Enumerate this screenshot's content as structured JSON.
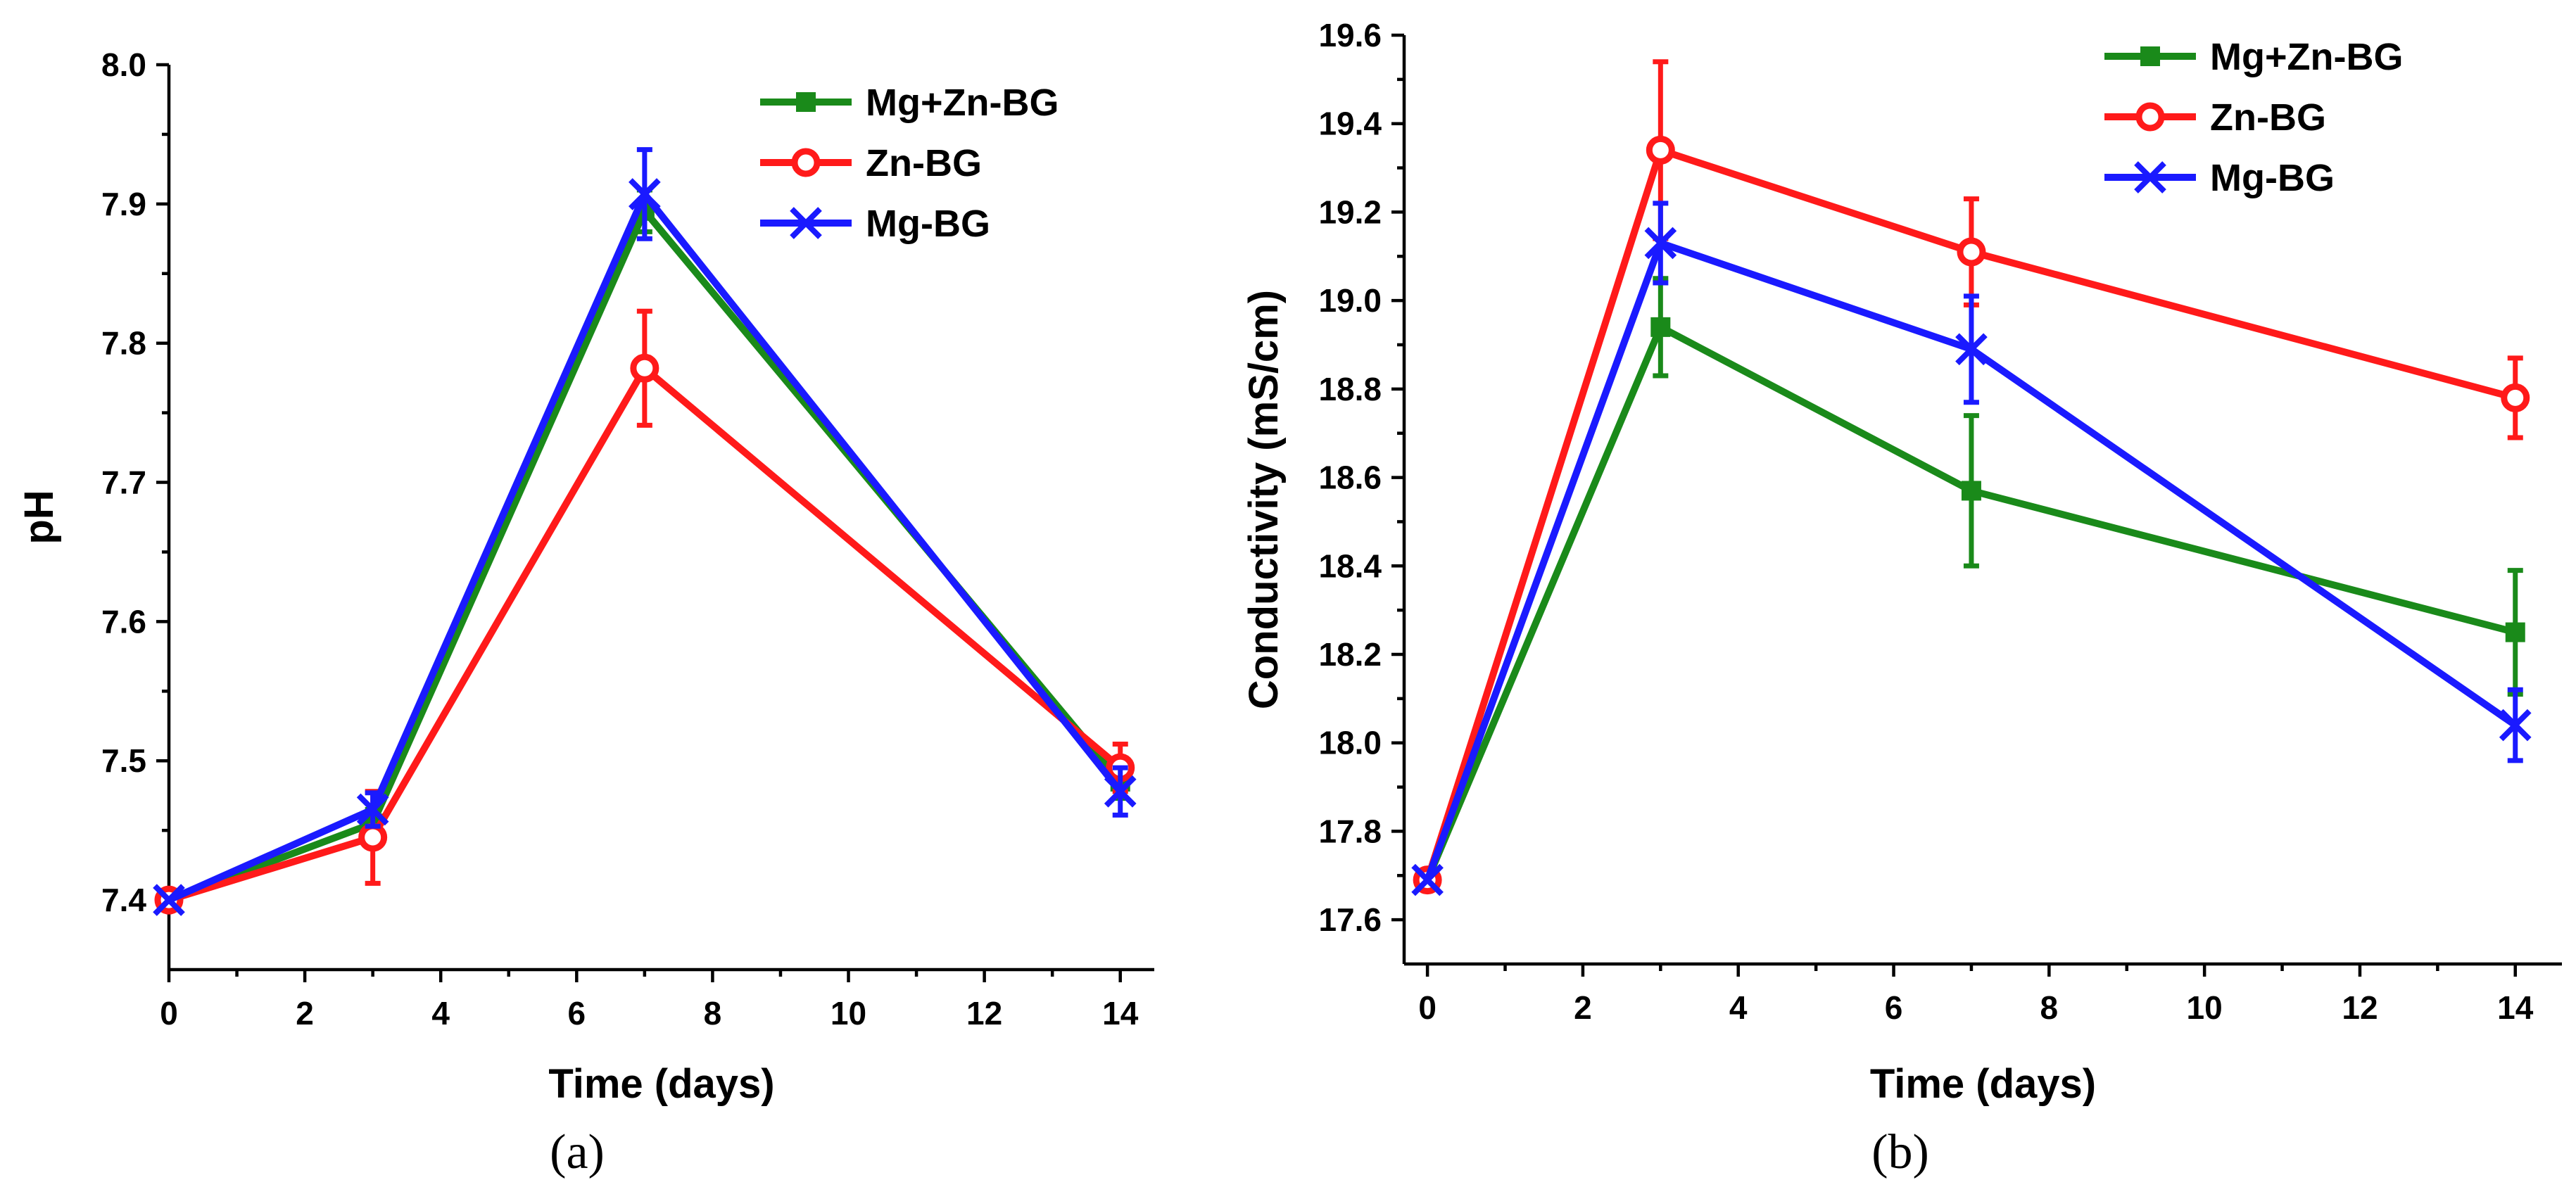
{
  "chart_data": [
    {
      "type": "line",
      "caption": "(a)",
      "xlabel": "Time (days)",
      "ylabel": "pH",
      "xlim": [
        0,
        14.5
      ],
      "ylim": [
        7.35,
        8.0
      ],
      "xticks": [
        0,
        2,
        4,
        6,
        8,
        10,
        12,
        14
      ],
      "yticks": [
        7.4,
        7.5,
        7.6,
        7.7,
        7.8,
        7.9,
        8.0
      ],
      "ytick_labels": [
        "7.4",
        "7.5",
        "7.6",
        "7.7",
        "7.8",
        "7.9",
        "8.0"
      ],
      "legend_position": "top-right",
      "series": [
        {
          "name": "Mg+Zn-BG",
          "color": "#1a8a1a",
          "marker": "square",
          "x": [
            0,
            3,
            7,
            14
          ],
          "y": [
            7.4,
            7.455,
            7.895,
            7.485
          ],
          "err": [
            0,
            0.01,
            0.015,
            0.012
          ]
        },
        {
          "name": "Zn-BG",
          "color": "#ff1a1a",
          "marker": "circle",
          "x": [
            0,
            3,
            7,
            14
          ],
          "y": [
            7.4,
            7.445,
            7.782,
            7.495
          ],
          "err": [
            0,
            0.033,
            0.041,
            0.017
          ]
        },
        {
          "name": "Mg-BG",
          "color": "#1a1aff",
          "marker": "cross",
          "x": [
            0,
            3,
            7,
            14
          ],
          "y": [
            7.4,
            7.465,
            7.907,
            7.478
          ],
          "err": [
            0,
            0.012,
            0.032,
            0.017
          ]
        }
      ]
    },
    {
      "type": "line",
      "caption": "(b)",
      "xlabel": "Time (days)",
      "ylabel": "Conductivity (mS/cm)",
      "xlim": [
        -0.3,
        14.6
      ],
      "ylim": [
        17.5,
        19.6
      ],
      "xticks": [
        0,
        2,
        4,
        6,
        8,
        10,
        12,
        14
      ],
      "yticks": [
        17.6,
        17.8,
        18.0,
        18.2,
        18.4,
        18.6,
        18.8,
        19.0,
        19.2,
        19.4,
        19.6
      ],
      "ytick_labels": [
        "17.6",
        "17.8",
        "18.0",
        "18.2",
        "18.4",
        "18.6",
        "18.8",
        "19.0",
        "19.2",
        "19.4",
        "19.6"
      ],
      "legend_position": "top-right",
      "series": [
        {
          "name": "Mg+Zn-BG",
          "color": "#1a8a1a",
          "marker": "square",
          "x": [
            0,
            3,
            7,
            14
          ],
          "y": [
            17.69,
            18.94,
            18.57,
            18.25
          ],
          "err": [
            0,
            0.11,
            0.17,
            0.14
          ]
        },
        {
          "name": "Zn-BG",
          "color": "#ff1a1a",
          "marker": "circle",
          "x": [
            0,
            3,
            7,
            14
          ],
          "y": [
            17.69,
            19.34,
            19.11,
            18.78
          ],
          "err": [
            0,
            0.2,
            0.12,
            0.09
          ]
        },
        {
          "name": "Mg-BG",
          "color": "#1a1aff",
          "marker": "cross",
          "x": [
            0,
            3,
            7,
            14
          ],
          "y": [
            17.69,
            19.13,
            18.89,
            18.04
          ],
          "err": [
            0,
            0.09,
            0.12,
            0.08
          ]
        }
      ]
    }
  ]
}
